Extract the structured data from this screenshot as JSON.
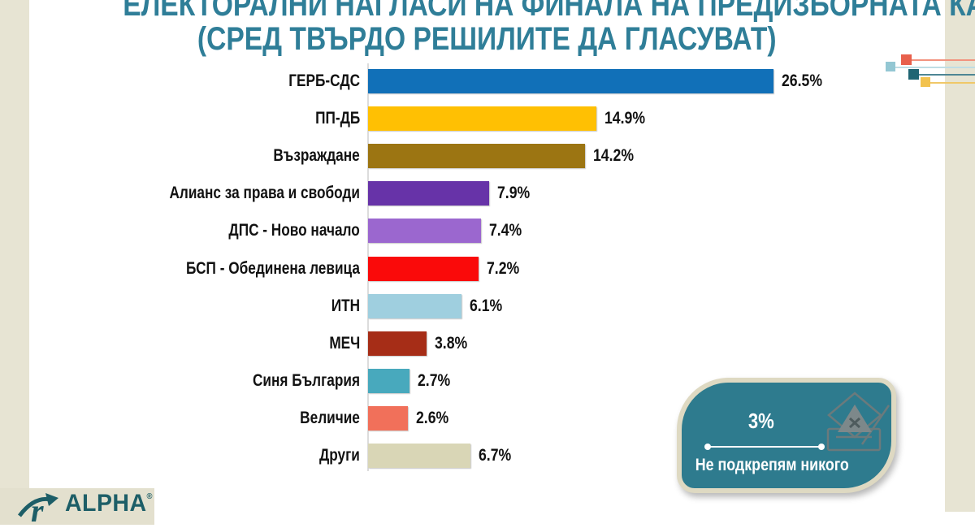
{
  "title": {
    "line1": "ЕЛЕКТОРАЛНИ НАГЛАСИ НА ФИНАЛА НА ПРЕДИЗБОРНАТА КАМПАНИЯ",
    "line2": "(СРЕД ТВЪРДО РЕШИЛИТЕ ДА ГЛАСУВАТ)"
  },
  "chart_data": {
    "type": "bar",
    "orientation": "horizontal",
    "categories": [
      "ГЕРБ-СДС",
      "ПП-ДБ",
      "Възраждане",
      "Алианс за права и свободи",
      "ДПС - Ново начало",
      "БСП - Обединена левица",
      "ИТН",
      "МЕЧ",
      "Синя България",
      "Величие",
      "Други"
    ],
    "values": [
      26.5,
      14.9,
      14.2,
      7.9,
      7.4,
      7.2,
      6.1,
      3.8,
      2.7,
      2.6,
      6.7
    ],
    "value_labels": [
      "26.5%",
      "14.9%",
      "14.2%",
      "7.9%",
      "7.4%",
      "7.2%",
      "6.1%",
      "3.8%",
      "2.7%",
      "2.6%",
      "6.7%"
    ],
    "bar_colors": [
      "#1170b8",
      "#ffc003",
      "#9c7512",
      "#6733a8",
      "#9b67cf",
      "#fa0a0a",
      "#9fcfdf",
      "#a62d17",
      "#48a9bd",
      "#f1705a",
      "#d9d6b6"
    ],
    "xlim": [
      0,
      30
    ],
    "grid": false,
    "legend": false,
    "data_labels_position": "end-of-bar"
  },
  "no_support_badge": {
    "value": "3%",
    "label": "Не подкрепям никого",
    "background": "#2e7b8e",
    "border_color": "#ded9c2",
    "icon": "ballot-box-icon"
  },
  "decoration": {
    "items": [
      {
        "square": "#e8604c",
        "line": "#f2937f"
      },
      {
        "square": "#93c7d3",
        "line": "#bfdde4"
      },
      {
        "square": "#1f6573",
        "line": "#4e8694"
      },
      {
        "square": "#f2c24e",
        "line": "#f0c868"
      }
    ]
  },
  "logo": {
    "text": "ALPHA",
    "registered_mark": "®"
  },
  "colors": {
    "page_background": "#ffffff",
    "side_strip": "#e7e4d3",
    "title_text": "#2f7e98",
    "axis_line": "#dcdcdc",
    "label_text": "#121212",
    "logo_teal": "#1d5e67",
    "logo_background": "#e3e0ce"
  }
}
